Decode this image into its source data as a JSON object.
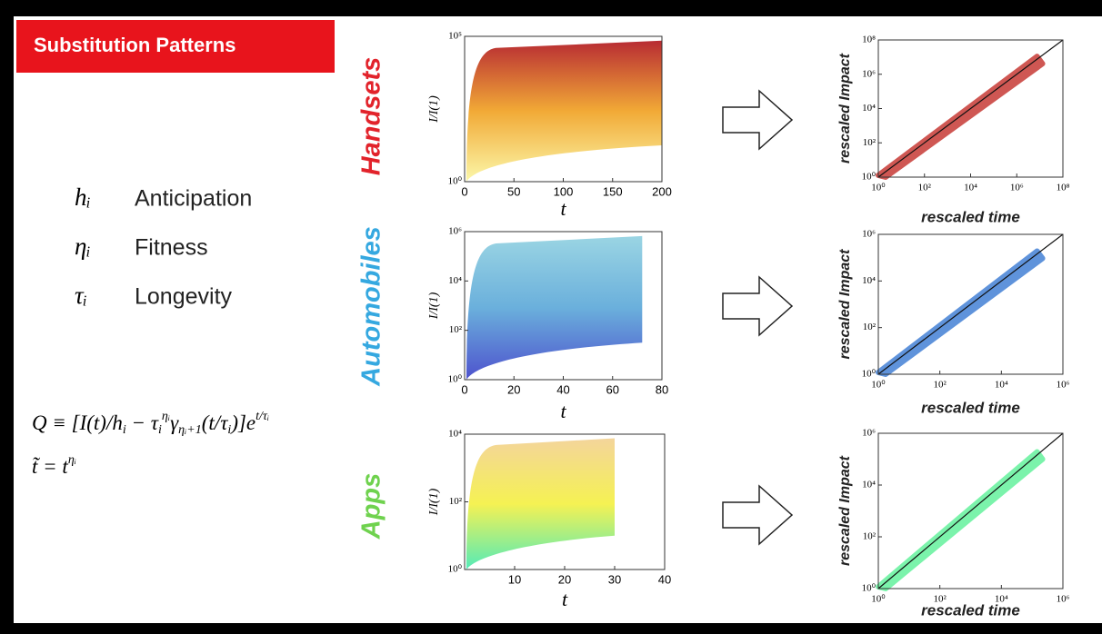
{
  "header": {
    "title": "Substitution Patterns"
  },
  "parameters": [
    {
      "symbol": "hᵢ",
      "label": "Anticipation"
    },
    {
      "symbol": "ηᵢ",
      "label": "Fitness"
    },
    {
      "symbol": "τᵢ",
      "label": "Longevity"
    }
  ],
  "formulas": [
    [
      {
        "text": "Q ≡ [I(t)/h",
        "style": "normal"
      },
      {
        "text": "i",
        "style": "sub"
      },
      {
        "text": " − τ",
        "style": "normal"
      },
      {
        "text": "i",
        "style": "sub"
      },
      {
        "text": "ηᵢ",
        "style": "sup"
      },
      {
        "text": "γ",
        "style": "normal"
      },
      {
        "text": "ηᵢ+1",
        "style": "sub"
      },
      {
        "text": "(t/τ",
        "style": "normal"
      },
      {
        "text": "i",
        "style": "sub"
      },
      {
        "text": ")]e",
        "style": "normal"
      },
      {
        "text": "t/τᵢ",
        "style": "sup"
      }
    ],
    [
      {
        "text": "t̃ = t",
        "style": "normal"
      },
      {
        "text": "ηᵢ",
        "style": "sup"
      }
    ]
  ],
  "panels": [
    {
      "label": "Handsets",
      "color": "#e2232b",
      "curves": {
        "xlabel": "t",
        "ylabel": "I/I(1)",
        "xlim": [
          0,
          200
        ],
        "xticks": [
          0,
          50,
          100,
          150,
          200
        ],
        "ylim": [
          1,
          100000
        ],
        "yticks": [
          {
            "value": 1,
            "label": "10⁰"
          },
          {
            "value": 100000,
            "label": "10⁵"
          }
        ],
        "colors": [
          "#b0141c",
          "#f0a020",
          "#fbf7a0"
        ]
      },
      "collapse": {
        "xlabel": "rescaled time",
        "ylabel": "rescaled Impact",
        "xlim": [
          1,
          100000000
        ],
        "ylim": [
          1,
          100000000
        ],
        "xticks": [
          {
            "value": 1,
            "label": "10⁰"
          },
          {
            "value": 100,
            "label": "10²"
          },
          {
            "value": 10000,
            "label": "10⁴"
          },
          {
            "value": 1000000,
            "label": "10⁶"
          },
          {
            "value": 100000000,
            "label": "10⁸"
          }
        ],
        "yticks": [
          {
            "value": 1,
            "label": "10⁰"
          },
          {
            "value": 100,
            "label": "10²"
          },
          {
            "value": 10000,
            "label": "10⁴"
          },
          {
            "value": 1000000,
            "label": "10⁶"
          },
          {
            "value": 100000000,
            "label": "10⁸"
          }
        ],
        "color": "#c0201a"
      }
    },
    {
      "label": "Automobiles",
      "color": "#35a8e0",
      "curves": {
        "xlabel": "t",
        "ylabel": "I/I(1)",
        "xlim": [
          0,
          80
        ],
        "xticks": [
          0,
          20,
          40,
          60,
          80
        ],
        "ylim": [
          1,
          1000000
        ],
        "yticks": [
          {
            "value": 1,
            "label": "10⁰"
          },
          {
            "value": 100,
            "label": "10²"
          },
          {
            "value": 10000,
            "label": "10⁴"
          },
          {
            "value": 1000000,
            "label": "10⁶"
          }
        ],
        "colors": [
          "#8fd0e0",
          "#5aa7d8",
          "#3a3fc8"
        ]
      },
      "collapse": {
        "xlabel": "rescaled time",
        "ylabel": "rescaled Impact",
        "xlim": [
          1,
          1000000
        ],
        "ylim": [
          1,
          1000000
        ],
        "xticks": [
          {
            "value": 1,
            "label": "10⁰"
          },
          {
            "value": 100,
            "label": "10²"
          },
          {
            "value": 10000,
            "label": "10⁴"
          },
          {
            "value": 1000000,
            "label": "10⁶"
          }
        ],
        "yticks": [
          {
            "value": 1,
            "label": "10⁰"
          },
          {
            "value": 100,
            "label": "10²"
          },
          {
            "value": 10000,
            "label": "10⁴"
          },
          {
            "value": 1000000,
            "label": "10⁶"
          }
        ],
        "color": "#2a70d0"
      }
    },
    {
      "label": "Apps",
      "color": "#6fd24e",
      "curves": {
        "xlabel": "t",
        "ylabel": "I/I(1)",
        "xlim": [
          0,
          40
        ],
        "xticks": [
          10,
          20,
          30,
          40
        ],
        "ylim": [
          1,
          10000
        ],
        "yticks": [
          {
            "value": 1,
            "label": "10⁰"
          },
          {
            "value": 100,
            "label": "10²"
          },
          {
            "value": 10000,
            "label": "10⁴"
          }
        ],
        "colors": [
          "#f2d090",
          "#f4f040",
          "#40e8b0"
        ]
      },
      "collapse": {
        "xlabel": "rescaled time",
        "ylabel": "rescaled Impact",
        "xlim": [
          1,
          1000000
        ],
        "ylim": [
          1,
          1000000
        ],
        "xticks": [
          {
            "value": 1,
            "label": "10⁰"
          },
          {
            "value": 100,
            "label": "10²"
          },
          {
            "value": 10000,
            "label": "10⁴"
          },
          {
            "value": 1000000,
            "label": "10⁶"
          }
        ],
        "yticks": [
          {
            "value": 1,
            "label": "10⁰"
          },
          {
            "value": 100,
            "label": "10²"
          },
          {
            "value": 10000,
            "label": "10⁴"
          },
          {
            "value": 1000000,
            "label": "10⁶"
          }
        ],
        "color": "#50f090"
      }
    }
  ]
}
